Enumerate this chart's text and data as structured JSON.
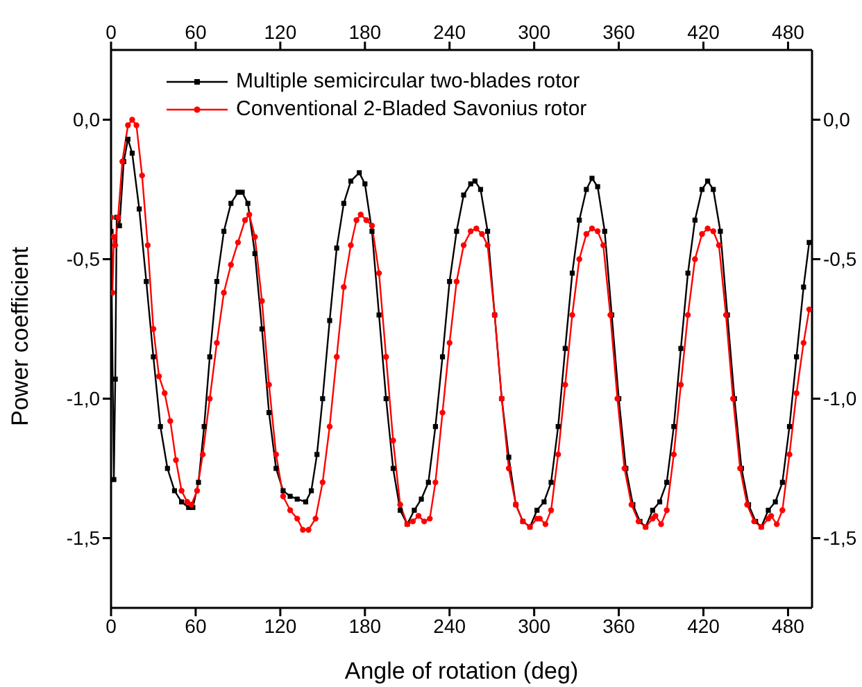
{
  "chart_data": {
    "type": "line",
    "xlabel": "Angle of rotation (deg)",
    "ylabel": "Power coefficient",
    "xlim": [
      0,
      497
    ],
    "xticks": [
      0,
      60,
      120,
      180,
      240,
      300,
      360,
      420,
      480
    ],
    "x2lim": [
      0,
      497
    ],
    "x2ticks": [
      0,
      60,
      120,
      180,
      240,
      300,
      360,
      420,
      480
    ],
    "ylim": [
      -1.75,
      0.25
    ],
    "yticks": [
      {
        "value": -1.5,
        "label": "-1,5"
      },
      {
        "value": -1,
        "label": "-1,0"
      },
      {
        "value": -0.5,
        "label": "-0,5"
      },
      {
        "value": 0,
        "label": "0,0"
      }
    ],
    "y2lim": [
      -1.75,
      0.25
    ],
    "y2ticks": [
      {
        "value": -1.5,
        "label": "-1,5"
      },
      {
        "value": -1,
        "label": "-1,0"
      },
      {
        "value": -0.5,
        "label": "-0,5"
      },
      {
        "value": 0,
        "label": "0,0"
      }
    ],
    "grid": false,
    "legend": "top left",
    "line_style": "solid",
    "series": [
      {
        "name": "Multiple semicircular two-blades rotor",
        "color": "#000000",
        "marker": "square",
        "x": [
          0,
          2,
          3,
          4,
          6,
          9,
          12,
          15,
          20,
          25,
          30,
          35,
          40,
          45,
          50,
          55,
          58,
          62,
          66,
          70,
          75,
          80,
          85,
          90,
          93,
          97,
          102,
          107,
          112,
          117,
          122,
          127,
          132,
          138,
          142,
          146,
          150,
          155,
          160,
          165,
          170,
          176,
          180,
          185,
          190,
          195,
          200,
          205,
          210,
          215,
          220,
          225,
          230,
          235,
          240,
          245,
          250,
          255,
          258,
          262,
          267,
          272,
          277,
          282,
          287,
          292,
          297,
          302,
          307,
          312,
          317,
          322,
          327,
          332,
          337,
          341,
          345,
          350,
          355,
          360,
          365,
          370,
          375,
          379,
          384,
          389,
          394,
          399,
          404,
          409,
          414,
          419,
          423,
          427,
          432,
          437,
          442,
          447,
          452,
          457,
          461,
          466,
          471,
          476,
          481,
          486,
          491,
          495
        ],
        "values": [
          -0.4,
          -1.29,
          -0.93,
          -0.35,
          -0.38,
          -0.15,
          -0.07,
          -0.12,
          -0.32,
          -0.58,
          -0.85,
          -1.1,
          -1.25,
          -1.33,
          -1.37,
          -1.39,
          -1.39,
          -1.3,
          -1.1,
          -0.85,
          -0.58,
          -0.4,
          -0.3,
          -0.26,
          -0.26,
          -0.3,
          -0.48,
          -0.75,
          -1.05,
          -1.25,
          -1.33,
          -1.35,
          -1.36,
          -1.37,
          -1.33,
          -1.2,
          -1.0,
          -0.72,
          -0.46,
          -0.3,
          -0.22,
          -0.19,
          -0.23,
          -0.4,
          -0.7,
          -1.0,
          -1.25,
          -1.4,
          -1.45,
          -1.4,
          -1.36,
          -1.3,
          -1.1,
          -0.85,
          -0.58,
          -0.4,
          -0.27,
          -0.23,
          -0.22,
          -0.25,
          -0.4,
          -0.7,
          -1.0,
          -1.21,
          -1.38,
          -1.44,
          -1.46,
          -1.4,
          -1.37,
          -1.3,
          -1.1,
          -0.82,
          -0.55,
          -0.36,
          -0.25,
          -0.21,
          -0.24,
          -0.4,
          -0.7,
          -1.0,
          -1.25,
          -1.38,
          -1.44,
          -1.46,
          -1.4,
          -1.37,
          -1.3,
          -1.1,
          -0.82,
          -0.55,
          -0.36,
          -0.25,
          -0.22,
          -0.25,
          -0.4,
          -0.7,
          -1.0,
          -1.25,
          -1.38,
          -1.44,
          -1.46,
          -1.4,
          -1.37,
          -1.3,
          -1.1,
          -0.85,
          -0.6,
          -0.44
        ]
      },
      {
        "name": "Conventional 2-Bladed Savonius rotor",
        "color": "#ff0000",
        "marker": "circle",
        "x": [
          0,
          1,
          2,
          3,
          5,
          8,
          12,
          15,
          18,
          22,
          26,
          30,
          34,
          38,
          42,
          46,
          50,
          54,
          57,
          61,
          65,
          70,
          75,
          80,
          85,
          90,
          95,
          98,
          102,
          107,
          112,
          117,
          122,
          127,
          132,
          136,
          140,
          145,
          150,
          155,
          160,
          165,
          170,
          174,
          177,
          181,
          185,
          190,
          195,
          200,
          205,
          210,
          214,
          218,
          222,
          226,
          230,
          235,
          240,
          245,
          250,
          255,
          259,
          263,
          267,
          272,
          277,
          282,
          287,
          292,
          297,
          302,
          304,
          308,
          312,
          317,
          322,
          327,
          332,
          337,
          341,
          345,
          349,
          354,
          359,
          364,
          369,
          374,
          379,
          384,
          386,
          390,
          394,
          399,
          404,
          409,
          414,
          419,
          423,
          427,
          431,
          436,
          441,
          446,
          451,
          456,
          461,
          466,
          468,
          472,
          476,
          481,
          486,
          491,
          495
        ],
        "values": [
          -0.35,
          -0.62,
          -0.42,
          -0.45,
          -0.35,
          -0.15,
          -0.02,
          0.0,
          -0.02,
          -0.2,
          -0.45,
          -0.75,
          -0.92,
          -0.98,
          -1.08,
          -1.22,
          -1.33,
          -1.37,
          -1.38,
          -1.33,
          -1.2,
          -1.0,
          -0.8,
          -0.62,
          -0.52,
          -0.44,
          -0.36,
          -0.34,
          -0.42,
          -0.65,
          -0.95,
          -1.2,
          -1.35,
          -1.4,
          -1.43,
          -1.47,
          -1.47,
          -1.43,
          -1.3,
          -1.1,
          -0.85,
          -0.6,
          -0.45,
          -0.36,
          -0.34,
          -0.36,
          -0.38,
          -0.55,
          -0.85,
          -1.15,
          -1.38,
          -1.45,
          -1.44,
          -1.42,
          -1.44,
          -1.43,
          -1.3,
          -1.05,
          -0.8,
          -0.58,
          -0.45,
          -0.4,
          -0.39,
          -0.41,
          -0.45,
          -0.7,
          -1.0,
          -1.25,
          -1.38,
          -1.44,
          -1.46,
          -1.43,
          -1.43,
          -1.45,
          -1.4,
          -1.2,
          -0.95,
          -0.7,
          -0.5,
          -0.41,
          -0.39,
          -0.4,
          -0.45,
          -0.7,
          -1.0,
          -1.25,
          -1.38,
          -1.44,
          -1.46,
          -1.43,
          -1.42,
          -1.45,
          -1.4,
          -1.2,
          -0.95,
          -0.7,
          -0.5,
          -0.41,
          -0.39,
          -0.4,
          -0.45,
          -0.7,
          -1.0,
          -1.25,
          -1.38,
          -1.44,
          -1.46,
          -1.43,
          -1.42,
          -1.45,
          -1.4,
          -1.2,
          -0.98,
          -0.8,
          -0.68
        ]
      }
    ]
  }
}
